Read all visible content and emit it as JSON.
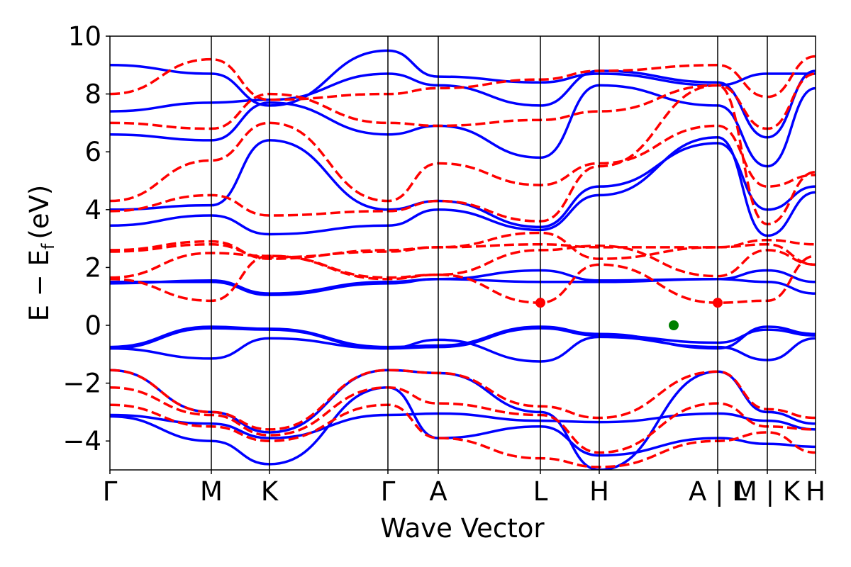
{
  "chart_data": {
    "type": "line",
    "title": "",
    "xlabel": "Wave Vector",
    "ylabel_main": "E − E",
    "ylabel_sub": "f",
    "ylabel_unit": "(eV)",
    "ylim": [
      -5,
      10
    ],
    "yticks": [
      10,
      8,
      6,
      4,
      2,
      0,
      -2,
      -4
    ],
    "ytick_labels": [
      "10",
      "8",
      "6",
      "4",
      "2",
      "0",
      "−2",
      "−4"
    ],
    "kpoints": [
      0,
      1.43,
      2.25,
      3.92,
      4.63,
      6.07,
      6.9,
      8.57,
      9.27,
      9.95
    ],
    "xtick_labels": [
      "Γ",
      "M",
      "K",
      "Γ",
      "A",
      "L",
      "H",
      "A | L",
      "M | K",
      "H"
    ],
    "colors": {
      "solid": "#0000ff",
      "dashed": "#ff0000",
      "vbm": "#008000",
      "cbm": "#ff0000"
    },
    "series": [
      {
        "name": "blue-1",
        "style": "solid",
        "values": [
          -0.75,
          -0.05,
          -0.12,
          -0.75,
          -0.7,
          -0.05,
          -0.3,
          -0.8,
          -0.05,
          -0.3
        ]
      },
      {
        "name": "blue-2",
        "style": "solid",
        "values": [
          -0.8,
          -0.1,
          -0.15,
          -0.8,
          -0.75,
          -0.1,
          -0.35,
          -0.6,
          -0.15,
          -0.35
        ]
      },
      {
        "name": "blue-3",
        "style": "solid",
        "values": [
          -0.8,
          -1.15,
          -0.45,
          -0.8,
          -0.5,
          -1.25,
          -0.4,
          -0.75,
          -1.2,
          -0.45
        ]
      },
      {
        "name": "blue-4",
        "style": "solid",
        "values": [
          1.45,
          1.55,
          1.1,
          1.5,
          1.6,
          1.9,
          1.55,
          1.6,
          1.9,
          1.5
        ]
      },
      {
        "name": "blue-5",
        "style": "solid",
        "values": [
          1.5,
          1.5,
          1.05,
          1.45,
          1.6,
          1.5,
          1.5,
          1.6,
          1.5,
          1.1
        ]
      },
      {
        "name": "blue-6",
        "style": "solid",
        "values": [
          3.45,
          3.8,
          3.15,
          3.45,
          4.0,
          3.3,
          4.5,
          6.5,
          3.1,
          4.6
        ]
      },
      {
        "name": "blue-7",
        "style": "solid",
        "values": [
          4.0,
          4.15,
          6.4,
          4.0,
          4.3,
          3.4,
          4.8,
          6.3,
          4.0,
          4.8
        ]
      },
      {
        "name": "blue-8",
        "style": "solid",
        "values": [
          6.6,
          6.4,
          7.7,
          6.6,
          6.9,
          5.8,
          8.3,
          7.6,
          5.5,
          8.2
        ]
      },
      {
        "name": "blue-9",
        "style": "solid",
        "values": [
          7.4,
          7.7,
          7.8,
          8.7,
          8.3,
          7.6,
          8.8,
          8.4,
          6.5,
          8.8
        ]
      },
      {
        "name": "blue-10",
        "style": "solid",
        "values": [
          9.0,
          8.7,
          7.6,
          9.5,
          8.6,
          8.4,
          8.7,
          8.3,
          8.7,
          8.7
        ]
      },
      {
        "name": "blue-11",
        "style": "solid",
        "values": [
          -1.55,
          -3.0,
          -3.7,
          -1.55,
          -1.65,
          -3.0,
          -5.0,
          -1.6,
          -3.0,
          -3.4
        ]
      },
      {
        "name": "blue-12",
        "style": "solid",
        "values": [
          -3.1,
          -3.4,
          -3.9,
          -3.1,
          -3.05,
          -3.3,
          -3.35,
          -3.05,
          -3.3,
          -3.6
        ]
      },
      {
        "name": "blue-13",
        "style": "solid",
        "values": [
          -3.15,
          -4.0,
          -4.8,
          -2.15,
          -3.9,
          -3.5,
          -4.5,
          -3.9,
          -4.1,
          -4.2
        ]
      },
      {
        "name": "red-1",
        "style": "dashed",
        "values": [
          1.6,
          0.85,
          2.4,
          1.6,
          1.75,
          0.78,
          2.1,
          0.78,
          0.85,
          2.4
        ]
      },
      {
        "name": "red-2",
        "style": "dashed",
        "values": [
          1.65,
          2.5,
          2.4,
          1.65,
          1.75,
          2.6,
          2.75,
          1.7,
          2.6,
          2.1
        ]
      },
      {
        "name": "red-3",
        "style": "dashed",
        "values": [
          2.55,
          2.8,
          2.35,
          2.55,
          2.7,
          2.8,
          2.7,
          2.7,
          2.8,
          2.1
        ]
      },
      {
        "name": "red-4",
        "style": "dashed",
        "values": [
          2.6,
          2.9,
          2.3,
          2.6,
          2.7,
          3.2,
          2.3,
          2.7,
          2.95,
          2.8
        ]
      },
      {
        "name": "red-5",
        "style": "dashed",
        "values": [
          3.95,
          4.5,
          3.8,
          3.95,
          4.3,
          3.6,
          5.5,
          8.3,
          3.5,
          5.3
        ]
      },
      {
        "name": "red-6",
        "style": "dashed",
        "values": [
          4.3,
          5.7,
          7.0,
          4.3,
          5.6,
          4.85,
          5.6,
          6.9,
          4.8,
          5.2
        ]
      },
      {
        "name": "red-7",
        "style": "dashed",
        "values": [
          7.0,
          6.8,
          8.0,
          7.0,
          6.9,
          7.1,
          7.4,
          8.3,
          6.8,
          8.7
        ]
      },
      {
        "name": "red-8",
        "style": "dashed",
        "values": [
          8.0,
          9.2,
          7.8,
          8.0,
          8.2,
          8.5,
          8.8,
          9.0,
          7.9,
          9.3
        ]
      },
      {
        "name": "red-9",
        "style": "dashed",
        "values": [
          -1.55,
          -3.0,
          -3.6,
          -1.55,
          -1.65,
          -2.8,
          -3.2,
          -1.6,
          -2.9,
          -3.2
        ]
      },
      {
        "name": "red-10",
        "style": "dashed",
        "values": [
          -2.15,
          -3.1,
          -3.8,
          -2.15,
          -2.7,
          -3.1,
          -4.4,
          -2.7,
          -3.5,
          -3.6
        ]
      },
      {
        "name": "red-11",
        "style": "dashed",
        "values": [
          -2.75,
          -3.5,
          -4.0,
          -2.75,
          -3.9,
          -4.6,
          -4.9,
          -4.0,
          -3.7,
          -4.4
        ]
      }
    ],
    "markers": [
      {
        "name": "cbm-L",
        "k": 6.07,
        "E": 0.78,
        "color": "#ff0000"
      },
      {
        "name": "cbm-A",
        "k": 8.57,
        "E": 0.78,
        "color": "#ff0000"
      },
      {
        "name": "vbm",
        "k": 7.95,
        "E": 0.0,
        "color": "#008000"
      }
    ]
  }
}
